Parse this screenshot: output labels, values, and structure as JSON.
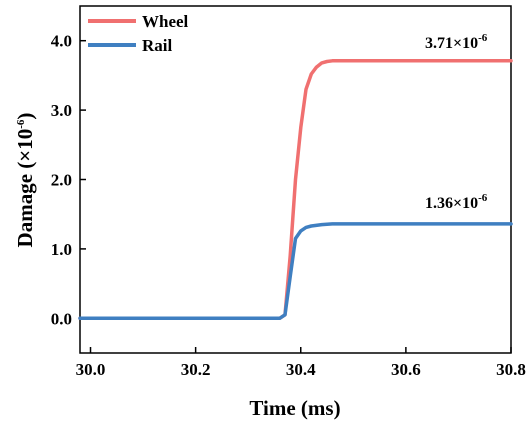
{
  "chart_data": {
    "type": "line",
    "xlabel": "Time (ms)",
    "ylabel_main": "Damage (×10",
    "ylabel_exp": "-6",
    "ylabel_close": ")",
    "xlim": [
      29.98,
      30.8
    ],
    "ylim": [
      -0.5,
      4.5
    ],
    "x_ticks": [
      "30.0",
      "30.2",
      "30.4",
      "30.6",
      "30.8"
    ],
    "x_tick_values": [
      30.0,
      30.2,
      30.4,
      30.6,
      30.8
    ],
    "y_ticks": [
      "0.0",
      "1.0",
      "2.0",
      "3.0",
      "4.0"
    ],
    "y_tick_values": [
      0.0,
      1.0,
      2.0,
      3.0,
      4.0
    ],
    "legend_position": "top-left",
    "series": [
      {
        "name": "Wheel",
        "color": "#f07070",
        "x": [
          29.98,
          30.3,
          30.36,
          30.37,
          30.38,
          30.39,
          30.4,
          30.41,
          30.42,
          30.43,
          30.44,
          30.45,
          30.46,
          30.5,
          30.6,
          30.7,
          30.8
        ],
        "y": [
          0.0,
          0.0,
          0.0,
          0.05,
          0.9,
          2.0,
          2.75,
          3.3,
          3.52,
          3.62,
          3.68,
          3.7,
          3.71,
          3.71,
          3.71,
          3.71,
          3.71
        ]
      },
      {
        "name": "Rail",
        "color": "#3f7fc1",
        "x": [
          29.98,
          30.3,
          30.36,
          30.37,
          30.38,
          30.39,
          30.4,
          30.41,
          30.42,
          30.44,
          30.46,
          30.5,
          30.6,
          30.7,
          30.8
        ],
        "y": [
          0.0,
          0.0,
          0.0,
          0.05,
          0.6,
          1.15,
          1.26,
          1.31,
          1.33,
          1.35,
          1.36,
          1.36,
          1.36,
          1.36,
          1.36
        ]
      }
    ],
    "annotations": [
      {
        "series": "Wheel",
        "main": "3.71×10",
        "exp": "-6"
      },
      {
        "series": "Rail",
        "main": "1.36×10",
        "exp": "-6"
      }
    ]
  }
}
